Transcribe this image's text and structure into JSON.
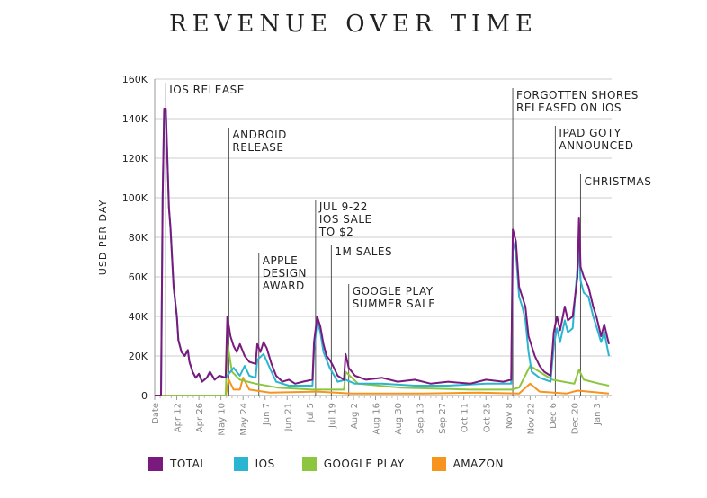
{
  "chart_data": {
    "type": "line",
    "title": "REVENUE OVER TIME",
    "xlabel": "",
    "ylabel": "USD PER DAY",
    "ylim": [
      0,
      160000
    ],
    "yticks": [
      "0",
      "20K",
      "40K",
      "60K",
      "80K",
      "100K",
      "120K",
      "140K",
      "160K"
    ],
    "xticks": [
      "Date",
      "Apr 12",
      "Apr 26",
      "May 10",
      "May 24",
      "Jun 7",
      "Jun 21",
      "Jul 5",
      "Jul 19",
      "Aug 2",
      "Aug 16",
      "Aug 30",
      "Sep 13",
      "Sep 27",
      "Oct 11",
      "Oct 25",
      "Nov 8",
      "Nov 22",
      "Dec 6",
      "Dec 20",
      "Jan 3"
    ],
    "grid": "horizontal",
    "legend_position": "bottom",
    "series": [
      {
        "name": "TOTAL",
        "color": "#7b1a7e",
        "points": [
          [
            "Mar 29",
            0
          ],
          [
            "Apr 2",
            0
          ],
          [
            "Apr 3",
            100000
          ],
          [
            "Apr 4",
            145000
          ],
          [
            "Apr 5",
            145000
          ],
          [
            "Apr 7",
            95000
          ],
          [
            "Apr 8",
            85000
          ],
          [
            "Apr 10",
            55000
          ],
          [
            "Apr 12",
            40000
          ],
          [
            "Apr 13",
            28000
          ],
          [
            "Apr 15",
            22000
          ],
          [
            "Apr 17",
            20000
          ],
          [
            "Apr 19",
            23000
          ],
          [
            "Apr 20",
            17000
          ],
          [
            "Apr 22",
            12000
          ],
          [
            "Apr 24",
            9000
          ],
          [
            "Apr 26",
            11000
          ],
          [
            "Apr 28",
            7000
          ],
          [
            "May 1",
            9000
          ],
          [
            "May 3",
            12000
          ],
          [
            "May 6",
            8000
          ],
          [
            "May 9",
            10000
          ],
          [
            "May 13",
            9000
          ],
          [
            "May 14",
            40000
          ],
          [
            "May 16",
            30000
          ],
          [
            "May 18",
            25000
          ],
          [
            "May 20",
            22000
          ],
          [
            "May 22",
            26000
          ],
          [
            "May 25",
            20000
          ],
          [
            "May 28",
            17000
          ],
          [
            "Jun 1",
            16000
          ],
          [
            "Jun 2",
            26000
          ],
          [
            "Jun 4",
            22000
          ],
          [
            "Jun 6",
            27000
          ],
          [
            "Jun 8",
            24000
          ],
          [
            "Jun 11",
            16000
          ],
          [
            "Jun 14",
            10000
          ],
          [
            "Jun 18",
            7000
          ],
          [
            "Jun 22",
            8000
          ],
          [
            "Jun 26",
            6000
          ],
          [
            "Jul 1",
            7000
          ],
          [
            "Jul 7",
            8000
          ],
          [
            "Jul 8",
            27000
          ],
          [
            "Jul 10",
            40000
          ],
          [
            "Jul 12",
            35000
          ],
          [
            "Jul 14",
            26000
          ],
          [
            "Jul 16",
            20000
          ],
          [
            "Jul 18",
            18000
          ],
          [
            "Jul 20",
            15000
          ],
          [
            "Jul 23",
            10000
          ],
          [
            "Jul 27",
            8000
          ],
          [
            "Jul 28",
            21000
          ],
          [
            "Jul 30",
            14000
          ],
          [
            "Aug 3",
            10000
          ],
          [
            "Aug 10",
            8000
          ],
          [
            "Aug 20",
            9000
          ],
          [
            "Aug 30",
            7000
          ],
          [
            "Sep 10",
            8000
          ],
          [
            "Sep 20",
            6000
          ],
          [
            "Oct 1",
            7000
          ],
          [
            "Oct 15",
            6000
          ],
          [
            "Oct 25",
            8000
          ],
          [
            "Nov 5",
            7000
          ],
          [
            "Nov 10",
            8000
          ],
          [
            "Nov 11",
            84000
          ],
          [
            "Nov 13",
            78000
          ],
          [
            "Nov 15",
            55000
          ],
          [
            "Nov 17",
            50000
          ],
          [
            "Nov 19",
            45000
          ],
          [
            "Nov 21",
            30000
          ],
          [
            "Nov 23",
            25000
          ],
          [
            "Nov 25",
            20000
          ],
          [
            "Nov 28",
            15000
          ],
          [
            "Dec 1",
            12000
          ],
          [
            "Dec 5",
            10000
          ],
          [
            "Dec 7",
            32000
          ],
          [
            "Dec 9",
            40000
          ],
          [
            "Dec 11",
            33000
          ],
          [
            "Dec 14",
            45000
          ],
          [
            "Dec 16",
            38000
          ],
          [
            "Dec 19",
            40000
          ],
          [
            "Dec 22",
            60000
          ],
          [
            "Dec 23",
            90000
          ],
          [
            "Dec 24",
            65000
          ],
          [
            "Dec 26",
            60000
          ],
          [
            "Dec 29",
            55000
          ],
          [
            "Jan 1",
            45000
          ],
          [
            "Jan 3",
            40000
          ],
          [
            "Jan 6",
            30000
          ],
          [
            "Jan 8",
            36000
          ],
          [
            "Jan 11",
            26000
          ]
        ]
      },
      {
        "name": "IOS",
        "color": "#2bb5d0",
        "points": [
          [
            "Mar 29",
            0
          ],
          [
            "Apr 2",
            0
          ],
          [
            "Apr 3",
            100000
          ],
          [
            "Apr 4",
            145000
          ],
          [
            "Apr 5",
            145000
          ],
          [
            "Apr 7",
            95000
          ],
          [
            "Apr 8",
            85000
          ],
          [
            "Apr 10",
            55000
          ],
          [
            "Apr 12",
            40000
          ],
          [
            "Apr 13",
            28000
          ],
          [
            "Apr 15",
            22000
          ],
          [
            "Apr 17",
            20000
          ],
          [
            "Apr 19",
            23000
          ],
          [
            "Apr 20",
            17000
          ],
          [
            "Apr 22",
            12000
          ],
          [
            "Apr 24",
            9000
          ],
          [
            "Apr 26",
            11000
          ],
          [
            "Apr 28",
            7000
          ],
          [
            "May 1",
            9000
          ],
          [
            "May 3",
            12000
          ],
          [
            "May 6",
            8000
          ],
          [
            "May 9",
            10000
          ],
          [
            "May 13",
            9000
          ],
          [
            "May 14",
            10000
          ],
          [
            "May 18",
            14000
          ],
          [
            "May 22",
            10000
          ],
          [
            "May 25",
            15000
          ],
          [
            "May 28",
            10000
          ],
          [
            "Jun 1",
            9000
          ],
          [
            "Jun 2",
            18000
          ],
          [
            "Jun 6",
            21000
          ],
          [
            "Jun 11",
            12000
          ],
          [
            "Jun 14",
            7000
          ],
          [
            "Jun 22",
            5000
          ],
          [
            "Jul 7",
            5000
          ],
          [
            "Jul 8",
            22000
          ],
          [
            "Jul 10",
            38000
          ],
          [
            "Jul 12",
            32000
          ],
          [
            "Jul 14",
            22000
          ],
          [
            "Jul 18",
            14000
          ],
          [
            "Jul 23",
            7000
          ],
          [
            "Jul 28",
            8000
          ],
          [
            "Aug 3",
            6000
          ],
          [
            "Aug 20",
            6000
          ],
          [
            "Sep 10",
            5000
          ],
          [
            "Oct 1",
            5000
          ],
          [
            "Oct 25",
            6000
          ],
          [
            "Nov 10",
            6000
          ],
          [
            "Nov 11",
            78000
          ],
          [
            "Nov 13",
            72000
          ],
          [
            "Nov 15",
            50000
          ],
          [
            "Nov 17",
            45000
          ],
          [
            "Nov 19",
            38000
          ],
          [
            "Nov 21",
            22000
          ],
          [
            "Nov 23",
            12000
          ],
          [
            "Nov 28",
            9000
          ],
          [
            "Dec 5",
            7000
          ],
          [
            "Dec 7",
            25000
          ],
          [
            "Dec 9",
            34000
          ],
          [
            "Dec 11",
            27000
          ],
          [
            "Dec 14",
            38000
          ],
          [
            "Dec 16",
            32000
          ],
          [
            "Dec 19",
            34000
          ],
          [
            "Dec 23",
            75000
          ],
          [
            "Dec 24",
            58000
          ],
          [
            "Dec 26",
            52000
          ],
          [
            "Dec 29",
            50000
          ],
          [
            "Jan 1",
            40000
          ],
          [
            "Jan 3",
            35000
          ],
          [
            "Jan 6",
            27000
          ],
          [
            "Jan 8",
            32000
          ],
          [
            "Jan 11",
            20000
          ]
        ]
      },
      {
        "name": "GOOGLE PLAY",
        "color": "#8cc63f",
        "points": [
          [
            "Mar 29",
            0
          ],
          [
            "May 13",
            0
          ],
          [
            "May 14",
            27000
          ],
          [
            "May 17",
            12000
          ],
          [
            "May 22",
            8000
          ],
          [
            "Jun 1",
            6000
          ],
          [
            "Jun 15",
            4000
          ],
          [
            "Jul 7",
            3000
          ],
          [
            "Jul 27",
            3000
          ],
          [
            "Jul 28",
            12000
          ],
          [
            "Aug 5",
            6000
          ],
          [
            "Sep 1",
            4000
          ],
          [
            "Oct 15",
            3000
          ],
          [
            "Nov 10",
            3000
          ],
          [
            "Nov 15",
            4000
          ],
          [
            "Nov 22",
            15000
          ],
          [
            "Nov 28",
            12000
          ],
          [
            "Dec 6",
            8000
          ],
          [
            "Dec 20",
            6000
          ],
          [
            "Dec 23",
            13000
          ],
          [
            "Dec 26",
            8000
          ],
          [
            "Jan 5",
            6000
          ],
          [
            "Jan 11",
            5000
          ]
        ]
      },
      {
        "name": "AMAZON",
        "color": "#f7941d",
        "points": [
          [
            "Mar 29",
            0
          ],
          [
            "May 13",
            0
          ],
          [
            "May 15",
            8000
          ],
          [
            "May 18",
            3000
          ],
          [
            "May 22",
            3000
          ],
          [
            "May 24",
            9000
          ],
          [
            "May 28",
            3000
          ],
          [
            "Jun 10",
            1500
          ],
          [
            "Jul 10",
            2000
          ],
          [
            "Aug 1",
            1000
          ],
          [
            "Sep 15",
            1000
          ],
          [
            "Oct 20",
            1500
          ],
          [
            "Nov 15",
            1000
          ],
          [
            "Nov 22",
            6000
          ],
          [
            "Nov 28",
            2000
          ],
          [
            "Dec 15",
            1000
          ],
          [
            "Dec 22",
            2500
          ],
          [
            "Jan 11",
            1000
          ]
        ]
      }
    ],
    "annotations": [
      {
        "date": "Apr 5",
        "lines": [
          "IOS RELEASE"
        ]
      },
      {
        "date": "May 15",
        "lines": [
          "ANDROID",
          "RELEASE"
        ]
      },
      {
        "date": "Jun 3",
        "lines": [
          "APPLE",
          "DESIGN",
          "AWARD"
        ]
      },
      {
        "date": "Jul 9",
        "lines": [
          "JUL 9-22",
          "IOS SALE",
          "TO $2"
        ]
      },
      {
        "date": "Jul 19",
        "lines": [
          "1M SALES"
        ]
      },
      {
        "date": "Jul 30",
        "lines": [
          "GOOGLE PLAY",
          "SUMMER SALE"
        ]
      },
      {
        "date": "Nov 11",
        "lines": [
          "FORGOTTEN SHORES",
          "RELEASED ON IOS"
        ]
      },
      {
        "date": "Dec 8",
        "lines": [
          "IPAD GOTY",
          "ANNOUNCED"
        ]
      },
      {
        "date": "Dec 24",
        "lines": [
          "CHRISTMAS"
        ]
      }
    ]
  }
}
